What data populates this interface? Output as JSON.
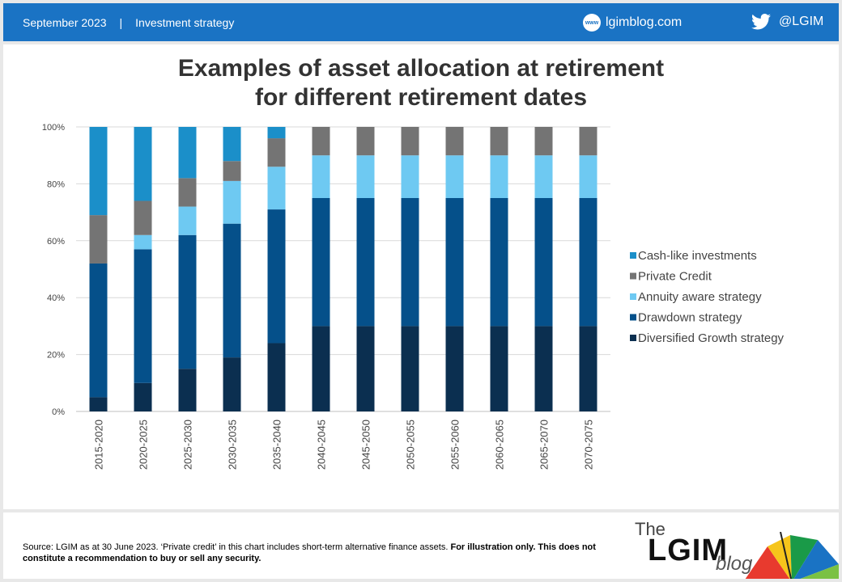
{
  "header": {
    "date": "September 2023",
    "separator": "|",
    "topic": "Investment strategy",
    "site_icon_text": "www",
    "site": "lgimblog.com",
    "twitter": "@LGIM",
    "bg_color": "#1a73c4"
  },
  "chart_data": {
    "type": "bar",
    "stacked": true,
    "title": "Examples of asset allocation at retirement for different retirement dates",
    "title_lines": [
      "Examples of asset allocation at retirement",
      "for different retirement dates"
    ],
    "categories": [
      "2015-2020",
      "2020-2025",
      "2025-2030",
      "2030-2035",
      "2035-2040",
      "2040-2045",
      "2045-2050",
      "2050-2055",
      "2055-2060",
      "2060-2065",
      "2065-2070",
      "2070-2075"
    ],
    "y_ticks": [
      "0%",
      "20%",
      "40%",
      "60%",
      "80%",
      "100%"
    ],
    "ylim": [
      0,
      100
    ],
    "legend_position": "right",
    "grid": true,
    "series": [
      {
        "name": "Diversified Growth strategy",
        "color": "#0b2f50",
        "values": [
          5,
          10,
          15,
          19,
          24,
          30,
          30,
          30,
          30,
          30,
          30,
          30
        ]
      },
      {
        "name": "Drawdown strategy",
        "color": "#05508a",
        "values": [
          47,
          47,
          47,
          47,
          47,
          45,
          45,
          45,
          45,
          45,
          45,
          45
        ]
      },
      {
        "name": "Annuity aware strategy",
        "color": "#6ec9f2",
        "values": [
          0,
          5,
          10,
          15,
          15,
          15,
          15,
          15,
          15,
          15,
          15,
          15
        ]
      },
      {
        "name": "Private Credit",
        "color": "#747474",
        "values": [
          17,
          12,
          10,
          7,
          10,
          10,
          10,
          10,
          10,
          10,
          10,
          10
        ]
      },
      {
        "name": "Cash-like investments",
        "color": "#1b8fc9",
        "values": [
          31,
          26,
          18,
          12,
          4,
          0,
          0,
          0,
          0,
          0,
          0,
          0
        ]
      }
    ]
  },
  "footer": {
    "source_text": "Source: LGIM as at 30 June 2023. ‘Private credit’ in this chart includes short-term alternative finance assets. ",
    "source_bold": "For illustration only. This does not constitute a recommendation to buy or sell any security.",
    "logo_the": "The",
    "logo_lgim": "LGIM",
    "logo_blog": "blog"
  }
}
